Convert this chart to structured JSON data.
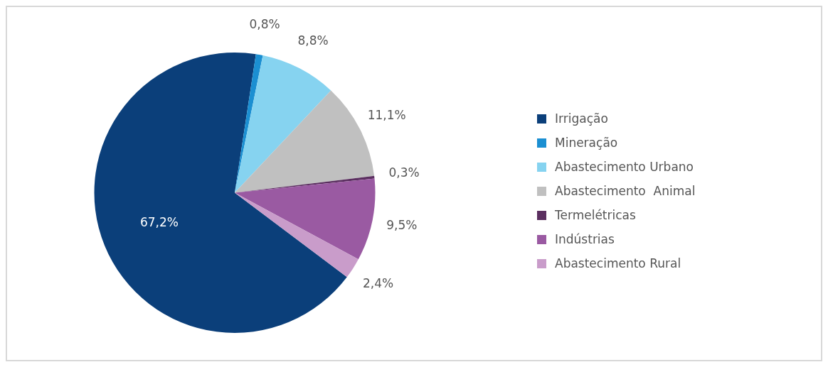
{
  "chart_data": {
    "type": "pie",
    "categories": [
      "Irrigação",
      "Mineração",
      "Abastecimento Urbano",
      "Abastecimento  Animal",
      "Termelétricas",
      "Indústrias",
      "Abastecimento Rural"
    ],
    "values": [
      67.2,
      0.8,
      8.8,
      11.1,
      0.3,
      9.5,
      2.4
    ],
    "value_labels": [
      "67,2%",
      "0,8%",
      "8,8%",
      "11,1%",
      "0,3%",
      "9,5%",
      "2,4%"
    ],
    "colors": [
      "#0b3f7a",
      "#1b8fd2",
      "#86d3f0",
      "#c0c0c0",
      "#5b2f60",
      "#9a5aa2",
      "#c99cca"
    ],
    "legend": "right"
  }
}
